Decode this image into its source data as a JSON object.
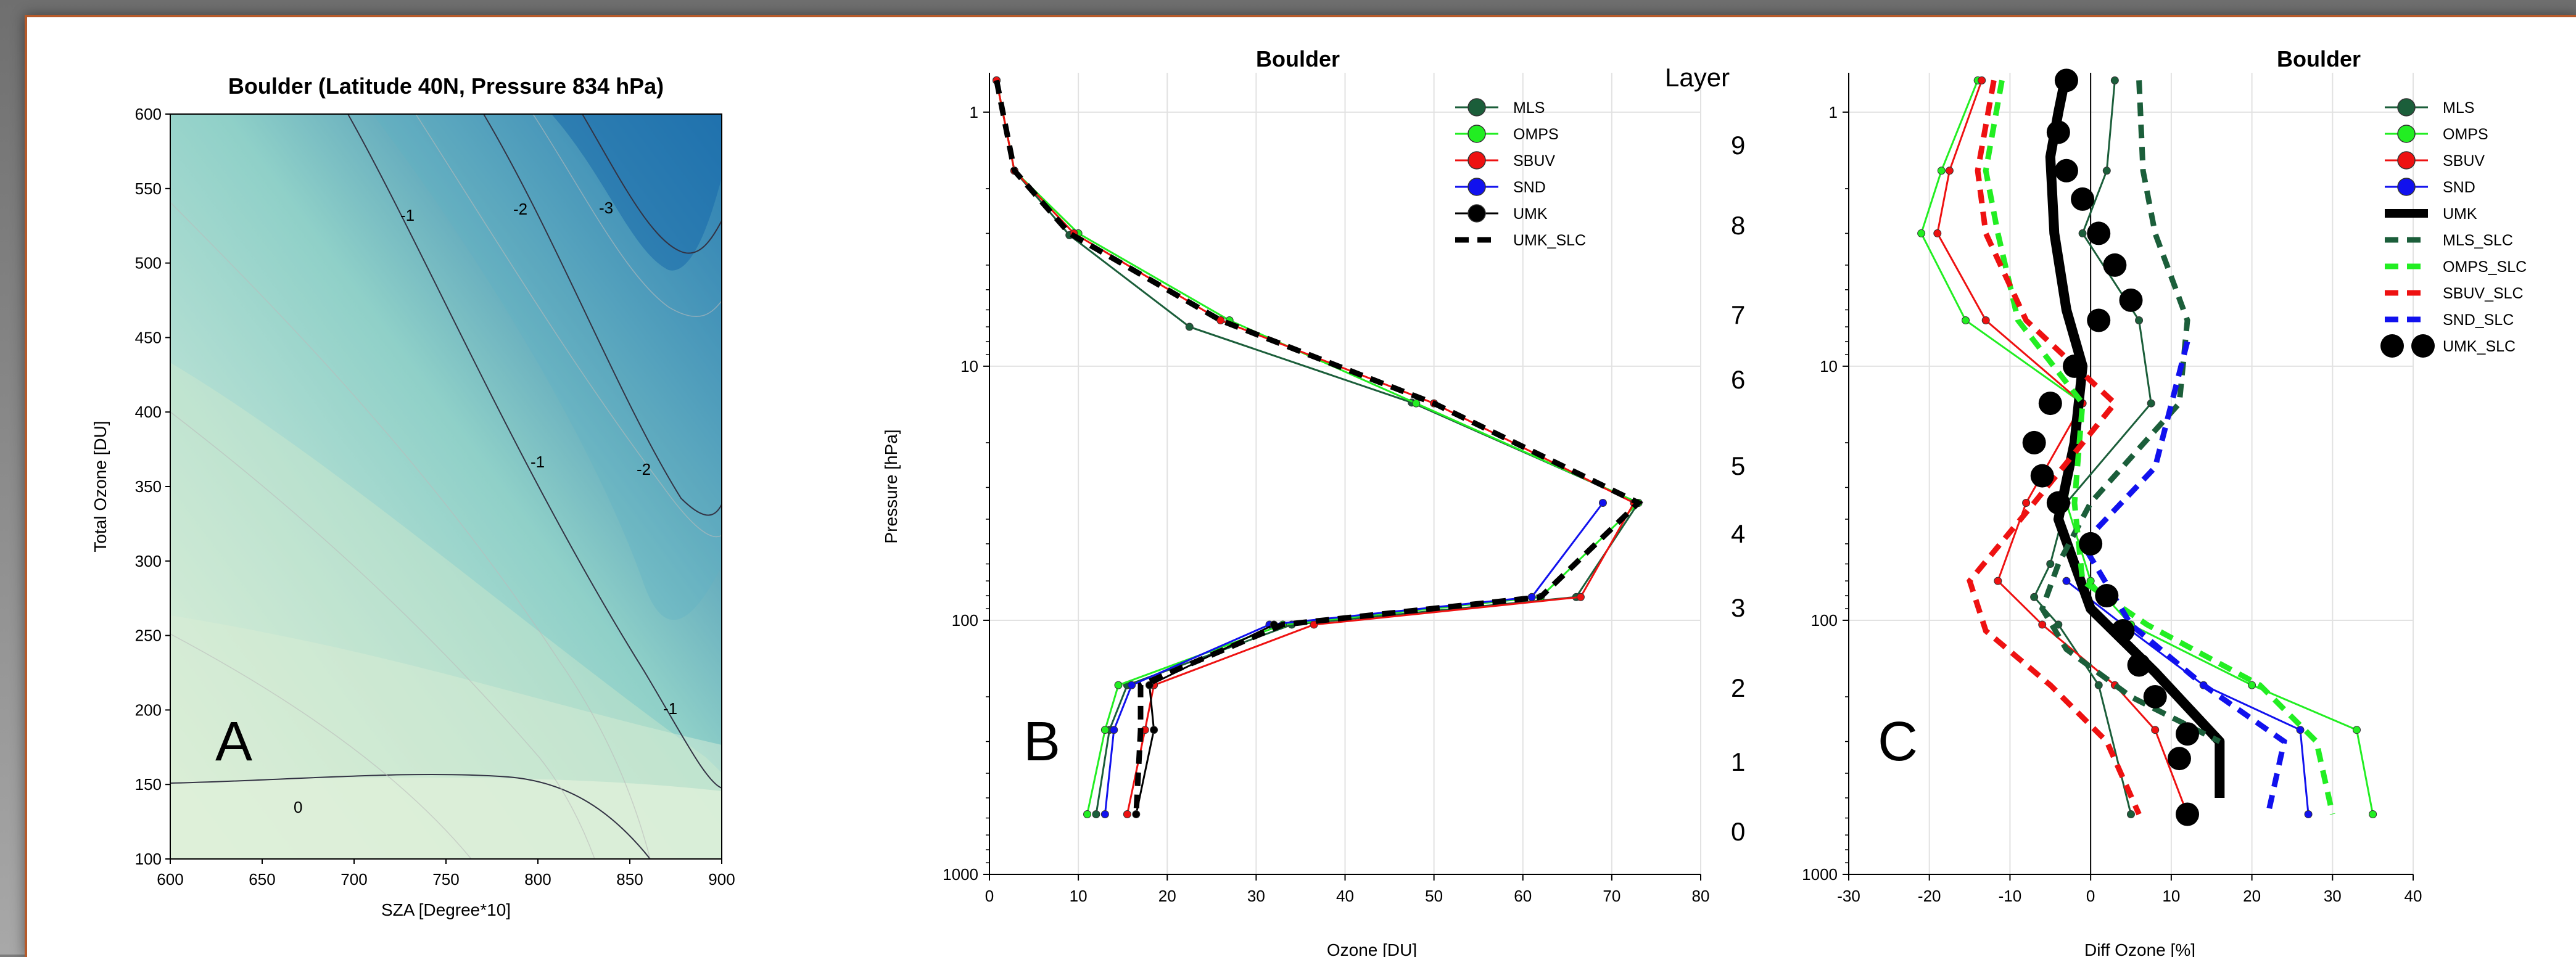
{
  "colors": {
    "mls": "#1b5e3a",
    "omps": "#22ee22",
    "sbuv": "#ee1111",
    "snd": "#1111ee",
    "umk": "#000000"
  },
  "chart_data": [
    {
      "type": "contour",
      "title": "Boulder   (Latitude 40N, Pressure 834 hPa)",
      "panel_label": "A",
      "xlabel": "SZA [Degree*10]",
      "ylabel": "Total Ozone [DU]",
      "xlim": [
        600,
        900
      ],
      "ylim": [
        100,
        600
      ],
      "xticks": [
        "600",
        "650",
        "700",
        "750",
        "800",
        "850",
        "900"
      ],
      "yticks": [
        "100",
        "150",
        "200",
        "250",
        "300",
        "350",
        "400",
        "450",
        "500",
        "550",
        "600"
      ],
      "contour_labels": [
        "0",
        "-1",
        "-1",
        "-1",
        "-2",
        "-2",
        "-3"
      ],
      "colormap": [
        "#e8f4e2",
        "#8fd0c8",
        "#1062a8"
      ]
    },
    {
      "type": "line",
      "title": "Boulder",
      "panel_label": "B",
      "xlabel": "Ozone [DU]",
      "ylabel": "Pressure [hPa]",
      "xlim": [
        0,
        80
      ],
      "ylim": [
        1000,
        0.7
      ],
      "y_scale": "log",
      "xticks": [
        "0",
        "10",
        "20",
        "30",
        "40",
        "50",
        "60",
        "70",
        "80"
      ],
      "yticks": [
        "1",
        "10",
        "100",
        "1000"
      ],
      "layer_heading": "Layer",
      "layers": [
        "9",
        "8",
        "7",
        "6",
        "5",
        "4",
        "3",
        "2",
        "1",
        "0"
      ],
      "legend_position": "top-right",
      "series": [
        {
          "name": "MLS",
          "color_key": "mls",
          "style": "solid-marker",
          "x": [
            0.8,
            2.8,
            9,
            22.5,
            47.5,
            73,
            66,
            34,
            15.5,
            13.5,
            12
          ],
          "y": [
            0.75,
            1.7,
            3.05,
            7.0,
            13.9,
            34.5,
            81,
            104,
            180,
            270,
            580
          ]
        },
        {
          "name": "OMPS",
          "color_key": "omps",
          "style": "solid-marker",
          "x": [
            0.8,
            2.8,
            10,
            27,
            48,
            73,
            62,
            33,
            14.5,
            13,
            11
          ],
          "y": [
            0.75,
            1.7,
            3.0,
            6.6,
            14.0,
            34.5,
            81,
            104,
            180,
            270,
            580
          ]
        },
        {
          "name": "SBUV",
          "color_key": "sbuv",
          "style": "solid-marker",
          "x": [
            0.8,
            2.8,
            9.5,
            26,
            50,
            72.5,
            66.5,
            36.5,
            18.5,
            17.5,
            15.5
          ],
          "y": [
            0.75,
            1.7,
            3.0,
            6.6,
            14.0,
            34.5,
            81,
            104,
            180,
            270,
            580
          ]
        },
        {
          "name": "SND",
          "color_key": "snd",
          "style": "solid-marker",
          "x": [
            null,
            null,
            null,
            null,
            null,
            69,
            61,
            31.5,
            16,
            14,
            13
          ],
          "y": [
            null,
            null,
            null,
            null,
            null,
            34.5,
            81,
            104,
            180,
            270,
            580
          ]
        },
        {
          "name": "UMK",
          "color_key": "umk",
          "style": "solid-marker",
          "x": [
            null,
            null,
            null,
            null,
            null,
            null,
            null,
            32,
            18,
            18.5,
            16.5
          ],
          "y": [
            null,
            null,
            null,
            null,
            null,
            null,
            null,
            104,
            180,
            270,
            580
          ]
        },
        {
          "name": "UMK_SLC",
          "color_key": "umk",
          "style": "dashed",
          "x": [
            0.8,
            2.8,
            9,
            26,
            50,
            73,
            62,
            33,
            17,
            17,
            16.5
          ],
          "y": [
            0.75,
            1.7,
            3.0,
            6.6,
            14.0,
            34.5,
            81,
            104,
            180,
            270,
            580
          ]
        }
      ]
    },
    {
      "type": "line",
      "title": "Boulder",
      "panel_label": "C",
      "xlabel": "Diff Ozone [%]",
      "ylabel": "",
      "xlim": [
        -30,
        40
      ],
      "ylim": [
        1000,
        0.7
      ],
      "y_scale": "log",
      "xticks": [
        "-30",
        "-20",
        "-10",
        "0",
        "10",
        "20",
        "30",
        "40"
      ],
      "yticks": [
        "1",
        "10",
        "100",
        "1000"
      ],
      "legend_position": "top-right",
      "series": [
        {
          "name": "MLS",
          "color_key": "mls",
          "style": "solid-marker",
          "x": [
            3,
            2,
            -1,
            6,
            7.5,
            -3,
            -5,
            -7,
            -4,
            1,
            5
          ],
          "y": [
            0.75,
            1.7,
            3.0,
            6.6,
            14.0,
            34.5,
            60,
            81,
            104,
            180,
            580
          ]
        },
        {
          "name": "OMPS",
          "color_key": "omps",
          "style": "solid-marker",
          "x": [
            -14,
            -18.5,
            -21,
            -15.5,
            -1,
            -3,
            0,
            5,
            20,
            33,
            35
          ],
          "y": [
            0.75,
            1.7,
            3.0,
            6.6,
            14.0,
            34.5,
            70,
            104,
            180,
            270,
            580
          ]
        },
        {
          "name": "SBUV",
          "color_key": "sbuv",
          "style": "solid-marker",
          "x": [
            -13.5,
            -17.5,
            -19,
            -13,
            -1,
            -8,
            -11.5,
            -6,
            3,
            8,
            12
          ],
          "y": [
            0.75,
            1.7,
            3.0,
            6.6,
            14.0,
            34.5,
            70,
            104,
            180,
            270,
            580
          ]
        },
        {
          "name": "SND",
          "color_key": "snd",
          "style": "solid-marker",
          "x": [
            null,
            null,
            null,
            null,
            null,
            null,
            -3,
            4,
            14,
            26,
            27
          ],
          "y": [
            null,
            null,
            null,
            null,
            null,
            null,
            70,
            104,
            180,
            270,
            580
          ]
        },
        {
          "name": "UMK",
          "color_key": "umk",
          "style": "thick",
          "x": [
            -3,
            -4,
            -5,
            -4.5,
            -3,
            -1,
            -2,
            -4,
            0,
            8,
            16,
            16
          ],
          "y": [
            0.7,
            1.0,
            1.5,
            3.0,
            6.0,
            10.0,
            20.0,
            40.0,
            90.0,
            160.0,
            300.0,
            500.0
          ]
        },
        {
          "name": "MLS_SLC",
          "color_key": "mls",
          "style": "dashed",
          "x": [
            6,
            6.5,
            8,
            12,
            11,
            0,
            -4,
            -6,
            -3,
            5,
            16
          ],
          "y": [
            0.75,
            1.7,
            3.0,
            6.6,
            14.0,
            34.5,
            60,
            90,
            130,
            200,
            300
          ]
        },
        {
          "name": "OMPS_SLC",
          "color_key": "omps",
          "style": "dashed",
          "x": [
            -11,
            -13,
            -11.5,
            -9,
            -1,
            -2,
            -1,
            7,
            21,
            28,
            30
          ],
          "y": [
            0.75,
            1.7,
            3.0,
            6.6,
            14.0,
            34.5,
            70,
            104,
            180,
            300,
            580
          ]
        },
        {
          "name": "SBUV_SLC",
          "color_key": "sbuv",
          "style": "dashed",
          "x": [
            -12,
            -14,
            -13,
            -8,
            3,
            -7,
            -15,
            -13,
            -5,
            2,
            6
          ],
          "y": [
            0.75,
            1.7,
            3.0,
            6.6,
            14.0,
            34.5,
            70,
            110,
            180,
            300,
            580
          ]
        },
        {
          "name": "SND_SLC",
          "color_key": "snd",
          "style": "dashed",
          "x": [
            null,
            null,
            null,
            null,
            12,
            8,
            -1,
            5,
            14,
            24,
            22
          ],
          "y": [
            null,
            null,
            null,
            null,
            8,
            25,
            50,
            104,
            180,
            300,
            580
          ]
        },
        {
          "name": "UMK_SLC",
          "color_key": "umk",
          "style": "dots",
          "x": [
            -3,
            -4,
            -3,
            -1,
            1,
            3,
            5,
            1,
            -2,
            -5,
            -7,
            -6,
            -4,
            0,
            2,
            4,
            6,
            8,
            12,
            11,
            12
          ],
          "y": [
            0.75,
            1.2,
            1.7,
            2.2,
            3.0,
            4.0,
            5.5,
            6.6,
            10,
            14,
            20,
            27,
            34.5,
            50,
            80,
            110,
            150,
            200,
            280,
            350,
            580
          ]
        }
      ]
    }
  ]
}
